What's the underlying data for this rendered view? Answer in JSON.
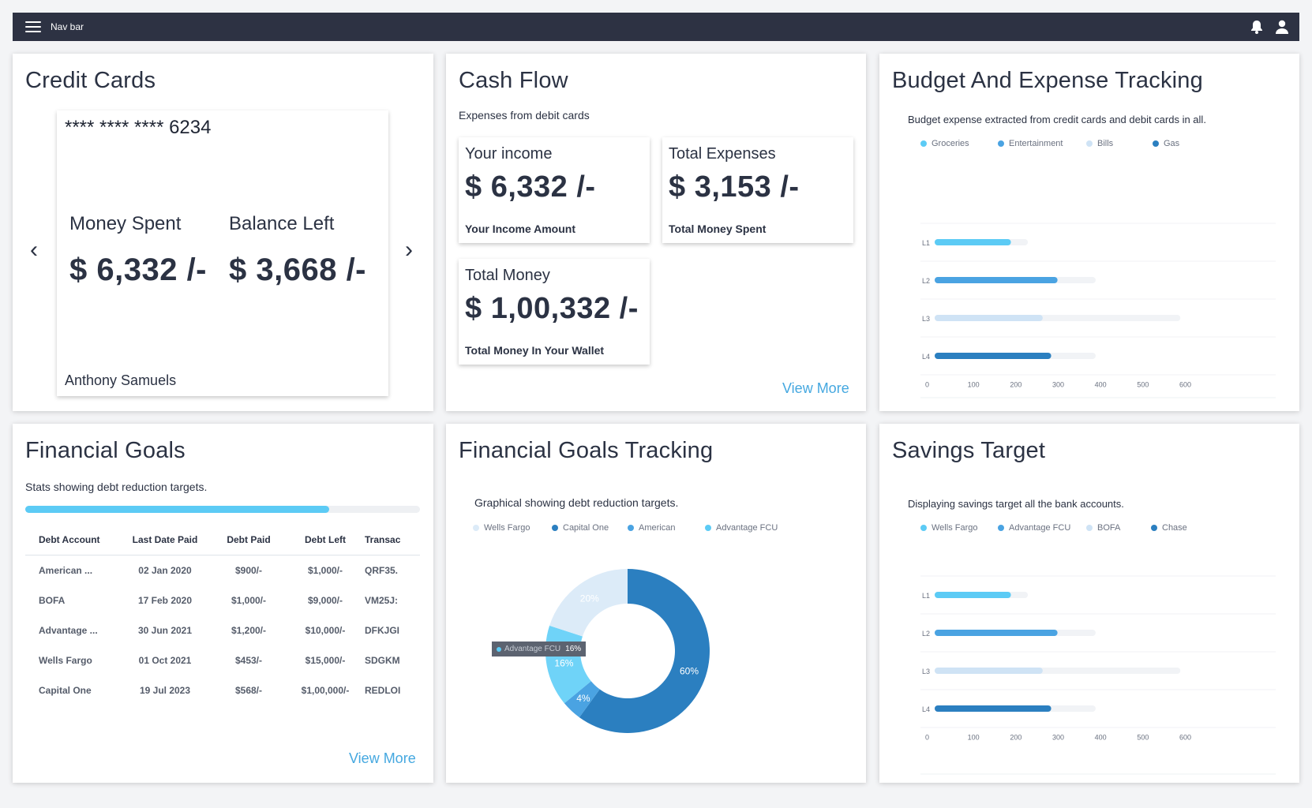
{
  "nav": {
    "title": "Nav bar",
    "menu_icon": "hamburger-menu-icon",
    "bell_icon": "bell-icon",
    "user_icon": "user-icon"
  },
  "credit_cards": {
    "title": "Credit Cards",
    "card_number": "**** **** **** 6234",
    "money_spent_label": "Money Spent",
    "money_spent_value": "$ 6,332 /-",
    "balance_left_label": "Balance Left",
    "balance_left_value": "$ 3,668 /-",
    "holder_name": "Anthony Samuels",
    "prev_arrow": "‹",
    "next_arrow": "›"
  },
  "cash_flow": {
    "title": "Cash Flow",
    "subtitle": "Expenses from debit cards",
    "income": {
      "title": "Your income",
      "value": "$ 6,332 /-",
      "sub": "Your Income Amount"
    },
    "expenses": {
      "title": "Total Expenses",
      "value": "$ 3,153 /-",
      "sub": "Total Money Spent"
    },
    "total": {
      "title": "Total Money",
      "value": "$ 1,00,332 /-",
      "sub": "Total Money In Your Wallet"
    },
    "view_more": "View More"
  },
  "budget": {
    "title": "Budget And Expense Tracking",
    "subtitle": "Budget expense extracted from credit cards and debit cards in all.",
    "legend": [
      {
        "name": "Groceries",
        "color": "#5ccbf5"
      },
      {
        "name": "Entertainment",
        "color": "#4aa3e2"
      },
      {
        "name": "Bills",
        "color": "#cfe3f5"
      },
      {
        "name": "Gas",
        "color": "#2b7fc0"
      }
    ]
  },
  "financial_goals": {
    "title": "Financial Goals",
    "subtitle": "Stats showing debt reduction targets.",
    "progress": 0.77,
    "columns": [
      "Debt Account",
      "Last Date Paid",
      "Debt Paid",
      "Debt Left",
      "Transac"
    ],
    "rows": [
      [
        "American ...",
        "02 Jan 2020",
        "$900/-",
        "$1,000/-",
        "QRF35."
      ],
      [
        "BOFA",
        "17 Feb 2020",
        "$1,000/-",
        "$9,000/-",
        "VM25J:"
      ],
      [
        "Advantage ...",
        "30 Jun 2021",
        "$1,200/-",
        "$10,000/-",
        "DFKJGI"
      ],
      [
        "Wells  Fargo",
        "01 Oct 2021",
        "$453/-",
        "$15,000/-",
        "SDGKM"
      ],
      [
        "Capital One",
        "19 Jul 2023",
        "$568/-",
        "$1,00,000/-",
        "REDLOI"
      ]
    ],
    "view_more": "View More"
  },
  "goals_tracking": {
    "title": "Financial Goals Tracking",
    "subtitle": "Graphical showing debt reduction targets.",
    "legend": [
      {
        "name": "Wells Fargo",
        "color": "#dcebf8"
      },
      {
        "name": "Capital One",
        "color": "#2b7fc0"
      },
      {
        "name": "American",
        "color": "#4aa3e2"
      },
      {
        "name": "Advantage FCU",
        "color": "#5ccbf5"
      }
    ],
    "tooltip": {
      "name": "Advantage FCU",
      "value": "16%"
    }
  },
  "savings": {
    "title": "Savings Target",
    "subtitle": "Displaying savings target all the bank accounts.",
    "legend": [
      {
        "name": "Wells Fargo",
        "color": "#5ccbf5"
      },
      {
        "name": "Advantage FCU",
        "color": "#4aa3e2"
      },
      {
        "name": "BOFA",
        "color": "#cfe3f5"
      },
      {
        "name": "Chase",
        "color": "#2b7fc0"
      }
    ]
  },
  "chart_data": [
    {
      "type": "bar",
      "orientation": "horizontal",
      "categories": [
        "L1",
        "L2",
        "L3",
        "L4"
      ],
      "values": [
        180,
        290,
        255,
        275
      ],
      "track_max": [
        220,
        380,
        580,
        380
      ],
      "colors": [
        "#5ccbf5",
        "#4aa3e2",
        "#cfe3f5",
        "#2b7fc0"
      ],
      "xticks": [
        0,
        100,
        200,
        300,
        400,
        500,
        600
      ],
      "xlim": [
        0,
        600
      ],
      "grid": true
    },
    {
      "type": "pie",
      "donut": true,
      "labels": [
        "Capital One",
        "American",
        "Advantage FCU",
        "Wells Fargo"
      ],
      "values": [
        60,
        4,
        16,
        20
      ],
      "colors": [
        "#2b7fc0",
        "#4aa3e2",
        "#6fd3f8",
        "#dcebf8"
      ],
      "value_labels": [
        "60%",
        "4%",
        "16%",
        "20%"
      ]
    },
    {
      "type": "bar",
      "orientation": "horizontal",
      "categories": [
        "L1",
        "L2",
        "L3",
        "L4"
      ],
      "values": [
        180,
        290,
        255,
        275
      ],
      "track_max": [
        220,
        380,
        580,
        380
      ],
      "colors": [
        "#5ccbf5",
        "#4aa3e2",
        "#cfe3f5",
        "#2b7fc0"
      ],
      "xticks": [
        0,
        100,
        200,
        300,
        400,
        500,
        600
      ],
      "xlim": [
        0,
        600
      ],
      "grid": true
    }
  ]
}
